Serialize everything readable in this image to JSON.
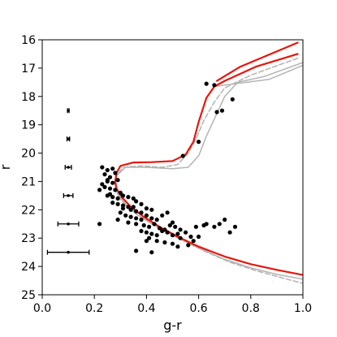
{
  "chart_data": {
    "type": "scatter",
    "title": "",
    "xlabel": "g-r",
    "ylabel": "r",
    "xlim": [
      0.0,
      1.0
    ],
    "ylim": [
      25,
      16
    ],
    "y_inverted": true,
    "grid": false,
    "x_ticks": [
      "0.0",
      "0.2",
      "0.4",
      "0.6",
      "0.8",
      "1.0"
    ],
    "y_ticks": [
      "16",
      "17",
      "18",
      "19",
      "20",
      "21",
      "22",
      "23",
      "24",
      "25"
    ],
    "colors": {
      "points": "#000000",
      "fit_isochrone": "#e8150b",
      "model_isochrone_solid": "#b3b3b3",
      "model_isochrone_dashed": "#b3b3b3",
      "error_bars": "#000000"
    },
    "series": [
      {
        "type": "scatter",
        "points": [
          [
            0.63,
            17.55
          ],
          [
            0.66,
            17.6
          ],
          [
            0.69,
            18.5
          ],
          [
            0.67,
            18.55
          ],
          [
            0.73,
            18.1
          ],
          [
            0.6,
            19.6
          ],
          [
            0.54,
            20.1
          ],
          [
            0.23,
            20.5
          ],
          [
            0.25,
            20.6
          ],
          [
            0.27,
            20.55
          ],
          [
            0.24,
            20.75
          ],
          [
            0.26,
            20.85
          ],
          [
            0.28,
            20.7
          ],
          [
            0.25,
            21.0
          ],
          [
            0.27,
            21.05
          ],
          [
            0.29,
            20.95
          ],
          [
            0.24,
            21.2
          ],
          [
            0.26,
            21.25
          ],
          [
            0.28,
            21.3
          ],
          [
            0.3,
            21.4
          ],
          [
            0.22,
            21.3
          ],
          [
            0.25,
            21.5
          ],
          [
            0.27,
            21.55
          ],
          [
            0.29,
            21.6
          ],
          [
            0.31,
            21.5
          ],
          [
            0.33,
            21.55
          ],
          [
            0.35,
            21.6
          ],
          [
            0.27,
            21.75
          ],
          [
            0.29,
            21.8
          ],
          [
            0.31,
            21.85
          ],
          [
            0.33,
            21.9
          ],
          [
            0.36,
            21.7
          ],
          [
            0.38,
            21.8
          ],
          [
            0.34,
            22.0
          ],
          [
            0.36,
            22.05
          ],
          [
            0.38,
            22.1
          ],
          [
            0.4,
            21.95
          ],
          [
            0.42,
            22.0
          ],
          [
            0.3,
            22.1
          ],
          [
            0.32,
            22.2
          ],
          [
            0.34,
            22.25
          ],
          [
            0.36,
            22.3
          ],
          [
            0.38,
            22.35
          ],
          [
            0.4,
            22.2
          ],
          [
            0.42,
            22.3
          ],
          [
            0.44,
            22.35
          ],
          [
            0.46,
            22.2
          ],
          [
            0.48,
            22.1
          ],
          [
            0.29,
            22.35
          ],
          [
            0.33,
            22.45
          ],
          [
            0.36,
            22.5
          ],
          [
            0.39,
            22.55
          ],
          [
            0.41,
            22.6
          ],
          [
            0.43,
            22.5
          ],
          [
            0.45,
            22.65
          ],
          [
            0.47,
            22.7
          ],
          [
            0.49,
            22.55
          ],
          [
            0.51,
            22.6
          ],
          [
            0.53,
            22.7
          ],
          [
            0.38,
            22.75
          ],
          [
            0.4,
            22.8
          ],
          [
            0.42,
            22.85
          ],
          [
            0.44,
            22.9
          ],
          [
            0.46,
            22.75
          ],
          [
            0.48,
            22.8
          ],
          [
            0.5,
            22.9
          ],
          [
            0.52,
            22.85
          ],
          [
            0.55,
            22.8
          ],
          [
            0.57,
            22.95
          ],
          [
            0.59,
            22.6
          ],
          [
            0.63,
            22.5
          ],
          [
            0.62,
            22.55
          ],
          [
            0.68,
            22.5
          ],
          [
            0.66,
            22.6
          ],
          [
            0.7,
            22.35
          ],
          [
            0.74,
            22.6
          ],
          [
            0.72,
            22.8
          ],
          [
            0.41,
            23.0
          ],
          [
            0.44,
            23.1
          ],
          [
            0.47,
            23.15
          ],
          [
            0.5,
            23.2
          ],
          [
            0.53,
            23.0
          ],
          [
            0.56,
            23.25
          ],
          [
            0.58,
            23.1
          ],
          [
            0.6,
            22.95
          ],
          [
            0.22,
            22.5
          ],
          [
            0.36,
            23.45
          ],
          [
            0.42,
            23.5
          ],
          [
            0.4,
            23.1
          ],
          [
            0.35,
            21.9
          ],
          [
            0.31,
            21.95
          ],
          [
            0.26,
            21.45
          ],
          [
            0.23,
            21.1
          ],
          [
            0.25,
            20.95
          ],
          [
            0.5,
            22.45
          ],
          [
            0.52,
            23.3
          ]
        ]
      },
      {
        "type": "line",
        "style": "solid-red",
        "points": [
          [
            0.98,
            16.5
          ],
          [
            0.82,
            16.95
          ],
          [
            0.7,
            17.45
          ],
          [
            0.66,
            17.65
          ],
          [
            0.63,
            18.05
          ],
          [
            0.6,
            18.9
          ],
          [
            0.58,
            19.6
          ],
          [
            0.55,
            20.05
          ],
          [
            0.5,
            20.28
          ],
          [
            0.42,
            20.32
          ],
          [
            0.35,
            20.33
          ],
          [
            0.3,
            20.45
          ],
          [
            0.285,
            20.7
          ],
          [
            0.28,
            21.0
          ],
          [
            0.285,
            21.25
          ],
          [
            0.305,
            21.55
          ],
          [
            0.34,
            21.9
          ],
          [
            0.39,
            22.25
          ],
          [
            0.45,
            22.6
          ],
          [
            0.52,
            22.95
          ],
          [
            0.6,
            23.3
          ],
          [
            0.7,
            23.65
          ],
          [
            0.8,
            23.92
          ],
          [
            0.9,
            24.12
          ],
          [
            1.0,
            24.3
          ]
        ]
      },
      {
        "type": "line",
        "style": "solid-red",
        "points": [
          [
            0.98,
            16.1
          ],
          [
            0.76,
            16.95
          ],
          [
            0.67,
            17.45
          ]
        ]
      },
      {
        "type": "line",
        "style": "solid-gray",
        "points": [
          [
            1.0,
            16.8
          ],
          [
            0.85,
            17.3
          ],
          [
            0.75,
            17.5
          ],
          [
            0.7,
            18.0
          ],
          [
            0.66,
            18.8
          ],
          [
            0.63,
            19.4
          ],
          [
            0.6,
            20.1
          ],
          [
            0.56,
            20.5
          ],
          [
            0.5,
            20.55
          ],
          [
            0.4,
            20.5
          ],
          [
            0.32,
            20.5
          ],
          [
            0.285,
            20.8
          ],
          [
            0.28,
            21.1
          ],
          [
            0.29,
            21.45
          ],
          [
            0.32,
            21.8
          ],
          [
            0.36,
            22.15
          ],
          [
            0.42,
            22.5
          ],
          [
            0.5,
            22.9
          ],
          [
            0.6,
            23.35
          ],
          [
            0.7,
            23.75
          ],
          [
            0.8,
            24.05
          ],
          [
            0.9,
            24.28
          ],
          [
            1.0,
            24.45
          ]
        ]
      },
      {
        "type": "line",
        "style": "solid-gray",
        "points": [
          [
            1.0,
            16.9
          ],
          [
            0.87,
            17.4
          ],
          [
            0.7,
            17.6
          ],
          [
            0.66,
            17.65
          ]
        ]
      },
      {
        "type": "line",
        "style": "dashed-gray",
        "points": [
          [
            0.98,
            16.65
          ],
          [
            0.8,
            17.25
          ],
          [
            0.7,
            17.7
          ],
          [
            0.66,
            18.2
          ],
          [
            0.62,
            18.85
          ],
          [
            0.59,
            19.5
          ],
          [
            0.56,
            20.0
          ],
          [
            0.52,
            20.4
          ],
          [
            0.46,
            20.5
          ],
          [
            0.38,
            20.45
          ],
          [
            0.31,
            20.5
          ],
          [
            0.285,
            20.8
          ],
          [
            0.28,
            21.15
          ],
          [
            0.29,
            21.5
          ],
          [
            0.32,
            21.85
          ],
          [
            0.37,
            22.2
          ],
          [
            0.44,
            22.6
          ],
          [
            0.52,
            23.0
          ],
          [
            0.62,
            23.45
          ],
          [
            0.72,
            23.85
          ],
          [
            0.82,
            24.15
          ],
          [
            0.92,
            24.4
          ],
          [
            1.0,
            24.6
          ]
        ]
      },
      {
        "type": "errorbar",
        "x": 0.1,
        "points": [
          {
            "y": 18.5,
            "xerr": 0.003
          },
          {
            "y": 19.5,
            "xerr": 0.005
          },
          {
            "y": 20.5,
            "xerr": 0.012
          },
          {
            "y": 21.5,
            "xerr": 0.018
          },
          {
            "y": 22.5,
            "xerr": 0.04
          },
          {
            "y": 23.5,
            "xerr": 0.08
          }
        ]
      }
    ]
  }
}
